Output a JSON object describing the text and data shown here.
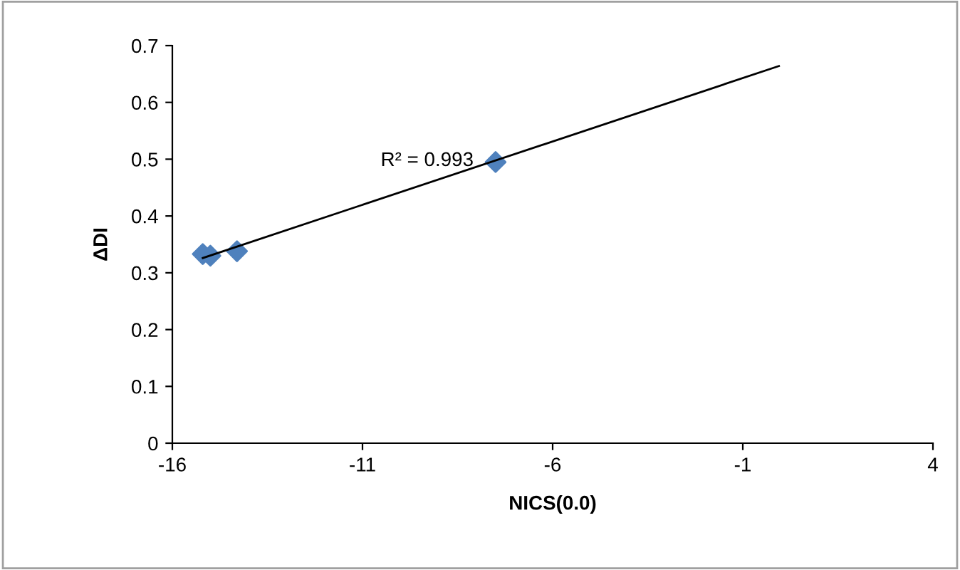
{
  "chart_data": {
    "type": "scatter",
    "xlabel": "NICS(0.0)",
    "ylabel": "ΔDI",
    "xlim": [
      -16,
      4
    ],
    "xticks": [
      -16,
      -11,
      -6,
      -1,
      4
    ],
    "ylim": [
      0,
      0.7
    ],
    "yticks": [
      0,
      0.1,
      0.2,
      0.3,
      0.4,
      0.5,
      0.6,
      0.7
    ],
    "grid": false,
    "legend": false,
    "series": [
      {
        "marker": "diamond",
        "color": "#4f81bd",
        "x": [
          -15.2,
          -15.0,
          -14.3,
          -7.5
        ],
        "values": [
          0.333,
          0.33,
          0.338,
          0.495
        ]
      },
      {
        "type": "line",
        "marker": "none",
        "line_style": "solid",
        "color": "#000000",
        "x": [
          -15.2,
          -0.05
        ],
        "values": [
          0.326,
          0.664
        ]
      }
    ],
    "annotations": [
      "R² = 0.993"
    ]
  }
}
